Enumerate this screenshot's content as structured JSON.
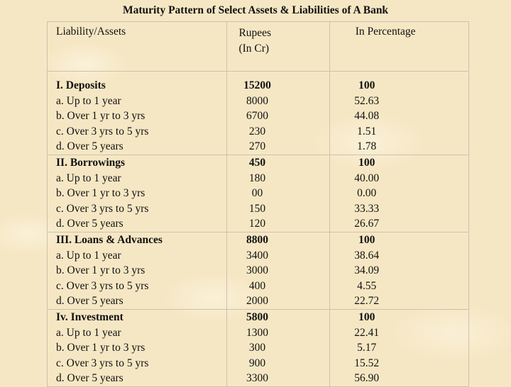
{
  "title": "Maturity Pattern of Select Assets & Liabilities of A Bank",
  "headers": {
    "col1": "Liability/Assets",
    "col2_line1": "Rupees",
    "col2_line2": "(In Cr)",
    "col3": "In Percentage"
  },
  "groups": [
    {
      "heading": {
        "label": "I. Deposits",
        "rupees": "15200",
        "percent": "100"
      },
      "rows": [
        {
          "label": "a. Up to 1 year",
          "rupees": "8000",
          "percent": "52.63"
        },
        {
          "label": "b. Over 1 yr to 3 yrs",
          "rupees": "6700",
          "percent": "44.08"
        },
        {
          "label": "c. Over 3 yrs to 5 yrs",
          "rupees": "230",
          "percent": "1.51"
        },
        {
          "label": "d. Over 5 years",
          "rupees": "270",
          "percent": "1.78"
        }
      ]
    },
    {
      "heading": {
        "label": "II. Borrowings",
        "rupees": "450",
        "percent": "100"
      },
      "rows": [
        {
          "label": "a. Up to 1 year",
          "rupees": "180",
          "percent": "40.00"
        },
        {
          "label": "b. Over 1 yr to 3 yrs",
          "rupees": "00",
          "percent": "0.00"
        },
        {
          "label": "c. Over 3 yrs to 5 yrs",
          "rupees": "150",
          "percent": "33.33"
        },
        {
          "label": "d. Over 5 years",
          "rupees": "120",
          "percent": "26.67"
        }
      ]
    },
    {
      "heading": {
        "label": "III. Loans & Advances",
        "rupees": "8800",
        "percent": "100"
      },
      "rows": [
        {
          "label": "a. Up to 1 year",
          "rupees": "3400",
          "percent": "38.64"
        },
        {
          "label": "b. Over 1 yr to 3 yrs",
          "rupees": "3000",
          "percent": "34.09"
        },
        {
          "label": "c. Over 3 yrs to 5 yrs",
          "rupees": "400",
          "percent": "4.55"
        },
        {
          "label": "d. Over 5 years",
          "rupees": "2000",
          "percent": "22.72"
        }
      ]
    },
    {
      "heading": {
        "label": "Iv. Investment",
        "rupees": "5800",
        "percent": "100"
      },
      "rows": [
        {
          "label": "a. Up to 1 year",
          "rupees": "1300",
          "percent": "22.41"
        },
        {
          "label": "b. Over 1 yr to 3 yrs",
          "rupees": "300",
          "percent": "5.17"
        },
        {
          "label": "c. Over 3 yrs to 5 yrs",
          "rupees": "900",
          "percent": "15.52"
        },
        {
          "label": "d. Over 5 years",
          "rupees": "3300",
          "percent": "56.90"
        }
      ]
    }
  ]
}
